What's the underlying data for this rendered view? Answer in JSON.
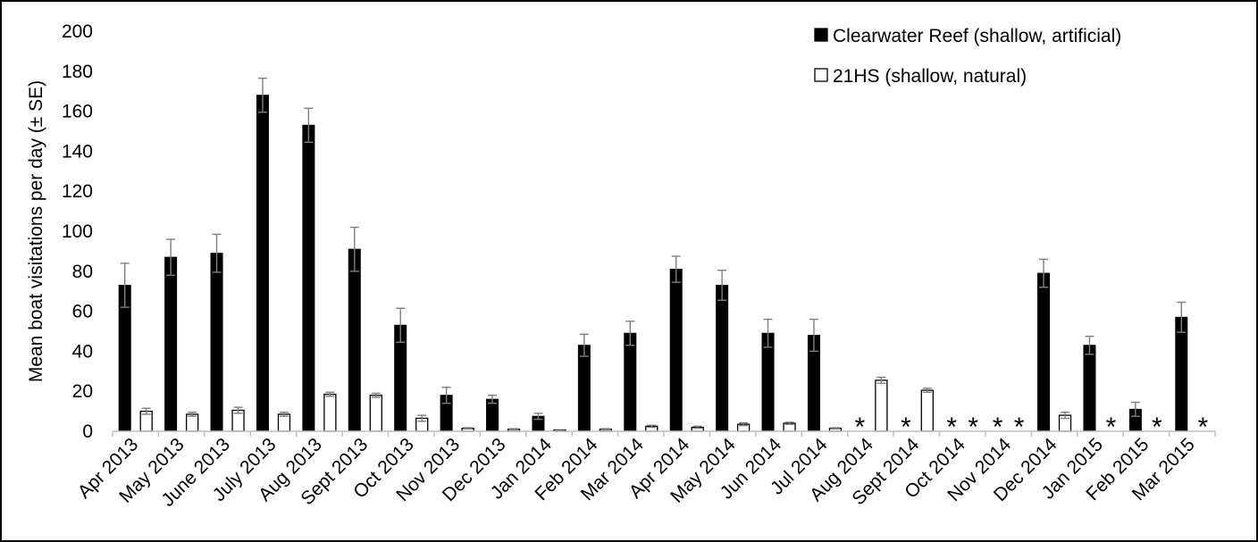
{
  "chart_data": {
    "type": "bar",
    "ylabel": "Mean boat visitations per day (± SE)",
    "xlabel": "",
    "ylim": [
      0,
      200
    ],
    "yticks": [
      0,
      20,
      40,
      60,
      80,
      100,
      120,
      140,
      160,
      180,
      200
    ],
    "grid": false,
    "legend_position": "top-right",
    "categories": [
      "Apr 2013",
      "May 2013",
      "June 2013",
      "July 2013",
      "Aug 2013",
      "Sept 2013",
      "Oct 2013",
      "Nov 2013",
      "Dec 2013",
      "Jan 2014",
      "Feb 2014",
      "Mar 2014",
      "Apr 2014",
      "May 2014",
      "Jun 2014",
      "Jul 2014",
      "Aug 2014",
      "Sept 2014",
      "Oct 2014",
      "Nov 2014",
      "Dec 2014",
      "Jan 2015",
      "Feb 2015",
      "Mar 2015"
    ],
    "series": [
      {
        "name": "Clearwater Reef (shallow, artificial)",
        "color": "#000000",
        "values": [
          73,
          87,
          89,
          168,
          153,
          91,
          53,
          18,
          16,
          7.5,
          43,
          49,
          81,
          73,
          49,
          48,
          null,
          null,
          null,
          null,
          79,
          43,
          11,
          57
        ],
        "errors": [
          11,
          9,
          9.5,
          8.5,
          8.5,
          11,
          8.5,
          4,
          2,
          1.5,
          5.5,
          6,
          6.5,
          7.5,
          7,
          8,
          null,
          null,
          null,
          null,
          7,
          4.5,
          3.5,
          7.5
        ]
      },
      {
        "name": "21HS (shallow, natural)",
        "color": "#ffffff",
        "values": [
          10,
          8.5,
          10.5,
          8.5,
          18.5,
          18,
          6.5,
          1.5,
          1,
          0.3,
          1,
          2.5,
          2,
          3.5,
          4,
          1.5,
          25.5,
          20.5,
          null,
          null,
          8,
          null,
          null,
          null
        ],
        "errors": [
          1.5,
          1,
          1.5,
          1,
          1,
          1,
          1.5,
          0.3,
          0.3,
          0.1,
          0.3,
          0.5,
          0.5,
          0.7,
          0.5,
          0.3,
          1.5,
          1,
          null,
          null,
          1.5,
          null,
          null,
          null
        ]
      }
    ],
    "annotations": [
      {
        "category": "Aug 2014",
        "series": [
          "Clearwater Reef (shallow, artificial)"
        ],
        "text": "*"
      },
      {
        "category": "Sept 2014",
        "series": [
          "Clearwater Reef (shallow, artificial)"
        ],
        "text": "*"
      },
      {
        "category": "Oct 2014",
        "series": [
          "Clearwater Reef (shallow, artificial)",
          "21HS (shallow, natural)"
        ],
        "text": "**"
      },
      {
        "category": "Nov 2014",
        "series": [
          "Clearwater Reef (shallow, artificial)",
          "21HS (shallow, natural)"
        ],
        "text": "**"
      },
      {
        "category": "Jan 2015",
        "series": [
          "21HS (shallow, natural)"
        ],
        "text": "*"
      },
      {
        "category": "Feb 2015",
        "series": [
          "21HS (shallow, natural)"
        ],
        "text": "*"
      },
      {
        "category": "Mar 2015",
        "series": [
          "21HS (shallow, natural)"
        ],
        "text": "*"
      }
    ]
  }
}
